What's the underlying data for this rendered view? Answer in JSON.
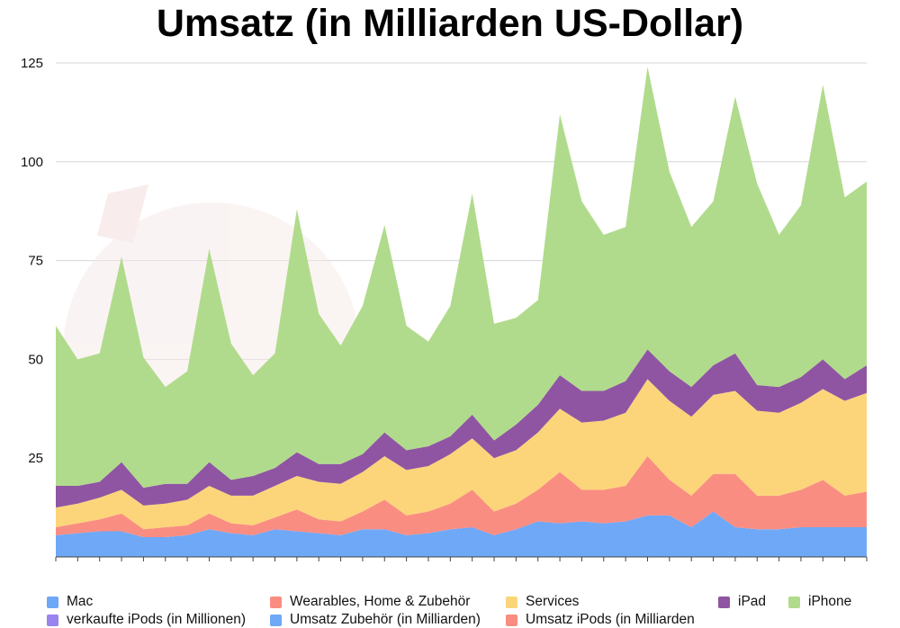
{
  "chart_data": {
    "type": "area",
    "stacked": true,
    "title": "Umsatz (in Milliarden US-Dollar)",
    "xlabel": "",
    "ylabel": "",
    "ylim": [
      0,
      125
    ],
    "yticks": [
      25,
      50,
      75,
      100,
      125
    ],
    "grid": true,
    "legend_position": "bottom",
    "legend": [
      {
        "label": "Mac",
        "color": "#6fa8f6"
      },
      {
        "label": "Wearables, Home & Zubehör",
        "color": "#fa8d82"
      },
      {
        "label": "Services",
        "color": "#fcd57a"
      },
      {
        "label": "iPad",
        "color": "#8f55a3"
      },
      {
        "label": "iPhone",
        "color": "#b1db8c"
      },
      {
        "label": "verkaufte iPods (in Millionen)",
        "color": "#9a84ee"
      },
      {
        "label": "Umsatz Zubehör (in Milliarden)",
        "color": "#6fa8f6"
      },
      {
        "label": "Umsatz iPods (in Milliarden",
        "color": "#fa8d82"
      }
    ],
    "series": [
      {
        "name": "Mac",
        "color": "#6fa8f6",
        "values": [
          5.5,
          6.0,
          6.5,
          6.5,
          5.0,
          5.0,
          5.5,
          7.0,
          6.0,
          5.5,
          7.0,
          6.5,
          6.0,
          5.5,
          7.0,
          7.0,
          5.5,
          6.0,
          7.0,
          7.5,
          5.5,
          7.0,
          9.0,
          8.5,
          9.0,
          8.5,
          9.0,
          10.5,
          10.5,
          7.5,
          11.5,
          7.5,
          7.0,
          7.0,
          7.5,
          7.5,
          7.5,
          7.5
        ]
      },
      {
        "name": "Wearables, Home & Zubehör",
        "color": "#fa8d82",
        "values": [
          2.0,
          2.5,
          3.0,
          4.5,
          2.0,
          2.5,
          2.5,
          4.0,
          2.5,
          2.5,
          3.0,
          5.5,
          3.5,
          3.5,
          4.5,
          7.5,
          5.0,
          5.5,
          6.5,
          9.5,
          6.0,
          6.5,
          8.0,
          13.0,
          8.0,
          8.5,
          9.0,
          15.0,
          9.0,
          8.0,
          9.5,
          13.5,
          8.5,
          8.5,
          9.5,
          12.0,
          8.0,
          9.0
        ]
      },
      {
        "name": "Services",
        "color": "#fcd57a",
        "values": [
          5.0,
          5.0,
          5.5,
          6.0,
          6.0,
          6.0,
          6.5,
          7.0,
          7.0,
          7.5,
          8.0,
          8.5,
          9.5,
          9.5,
          10.0,
          11.0,
          11.5,
          11.5,
          12.5,
          13.0,
          13.5,
          13.5,
          14.5,
          16.0,
          17.0,
          17.5,
          18.5,
          19.5,
          20.0,
          20.0,
          20.0,
          21.0,
          21.5,
          21.0,
          22.0,
          23.0,
          24.0,
          25.0
        ]
      },
      {
        "name": "iPad",
        "color": "#8f55a3",
        "values": [
          5.5,
          4.5,
          4.0,
          7.0,
          4.5,
          5.0,
          4.0,
          6.0,
          4.0,
          5.0,
          4.5,
          6.0,
          4.5,
          5.0,
          4.5,
          6.0,
          5.0,
          5.0,
          4.5,
          6.0,
          4.5,
          6.5,
          7.0,
          8.5,
          8.0,
          7.5,
          8.0,
          7.5,
          7.5,
          7.5,
          7.5,
          9.5,
          6.5,
          6.5,
          6.5,
          7.5,
          5.5,
          7.0
        ]
      },
      {
        "name": "iPhone",
        "color": "#b1db8c",
        "values": [
          40.5,
          32.0,
          32.5,
          52.0,
          33.0,
          24.5,
          28.5,
          54.0,
          34.5,
          25.5,
          29.0,
          61.5,
          38.0,
          30.0,
          37.5,
          52.5,
          31.5,
          26.5,
          33.0,
          56.0,
          29.5,
          27.0,
          26.5,
          66.0,
          48.0,
          39.5,
          39.0,
          71.5,
          50.5,
          40.5,
          41.5,
          65.0,
          51.0,
          38.5,
          43.5,
          69.5,
          46.0,
          46.5
        ]
      }
    ]
  }
}
